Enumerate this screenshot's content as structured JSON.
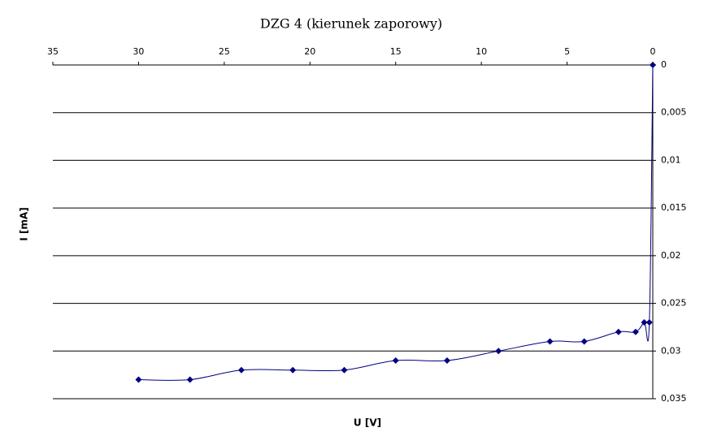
{
  "chart_data": {
    "type": "scatter",
    "title": "DZG 4 (kierunek zaporowy)",
    "x_label": "U [V]",
    "y_label": "I [mA]",
    "x": [
      30,
      27,
      24,
      21,
      18,
      15,
      12,
      9,
      6,
      4,
      2,
      1,
      0.5,
      0.2,
      0
    ],
    "values": [
      0.033,
      0.033,
      0.032,
      0.032,
      0.032,
      0.031,
      0.031,
      0.03,
      0.029,
      0.029,
      0.028,
      0.028,
      0.027,
      0.027,
      0
    ],
    "color": "#000080",
    "smooth": true,
    "xlim": [
      35,
      0
    ],
    "xticks": [
      35,
      30,
      25,
      20,
      15,
      10,
      5,
      0
    ],
    "ylim": [
      0,
      0.035
    ],
    "yticks": [
      0,
      {
        "value": 0.005,
        "label": "0,005"
      },
      {
        "value": 0.01,
        "label": "0,01"
      },
      {
        "value": 0.015,
        "label": "0,015"
      },
      {
        "value": 0.02,
        "label": "0,02"
      },
      {
        "value": 0.025,
        "label": "0,025"
      },
      {
        "value": 0.03,
        "label": "0,03"
      },
      {
        "value": 0.035,
        "label": "0,035"
      }
    ],
    "grid": true
  }
}
